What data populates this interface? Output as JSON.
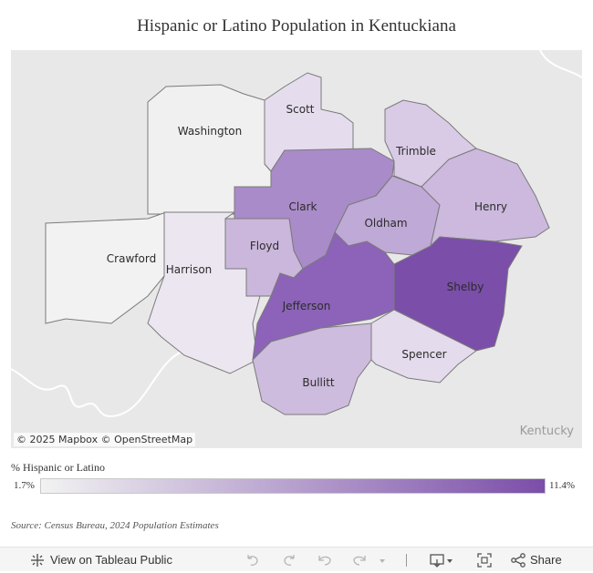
{
  "title": "Hispanic or Latino Population in Kentuckiana",
  "map": {
    "counties": [
      {
        "name": "Washington",
        "share": 0.0,
        "color": "#f0f0f0"
      },
      {
        "name": "Scott",
        "share": 0.15,
        "color": "#e5dded"
      },
      {
        "name": "Crawford",
        "share": 0.0,
        "color": "#f2f2f2"
      },
      {
        "name": "Harrison",
        "share": 0.12,
        "color": "#ece6f1"
      },
      {
        "name": "Clark",
        "share": 0.62,
        "color": "#a98bc9"
      },
      {
        "name": "Floyd",
        "share": 0.38,
        "color": "#cab7db"
      },
      {
        "name": "Trimble",
        "share": 0.25,
        "color": "#d9cbe6"
      },
      {
        "name": "Oldham",
        "share": 0.42,
        "color": "#bfa9d6"
      },
      {
        "name": "Henry",
        "share": 0.35,
        "color": "#ccb9dd"
      },
      {
        "name": "Jefferson",
        "share": 0.78,
        "color": "#8c63b8"
      },
      {
        "name": "Shelby",
        "share": 0.92,
        "color": "#7a4ea9"
      },
      {
        "name": "Bullitt",
        "share": 0.38,
        "color": "#cdbcdd"
      },
      {
        "name": "Spencer",
        "share": 0.18,
        "color": "#e4dbec"
      }
    ],
    "attribution": "© 2025 Mapbox  © OpenStreetMap",
    "state_label": "Kentucky"
  },
  "legend": {
    "title": "% Hispanic or Latino",
    "min": "1.7%",
    "max": "11.4%",
    "color_min": "#f2f2f2",
    "color_max": "#7b4ea9"
  },
  "source": "Source: Census Bureau, 2024 Population Estimates",
  "toolbar": {
    "view_label": "View on Tableau Public",
    "share_label": "Share",
    "icons": [
      "tableau-logo-icon",
      "undo-icon",
      "redo-icon",
      "revert-icon",
      "refresh-icon",
      "download-icon",
      "fullscreen-icon",
      "share-icon"
    ]
  }
}
